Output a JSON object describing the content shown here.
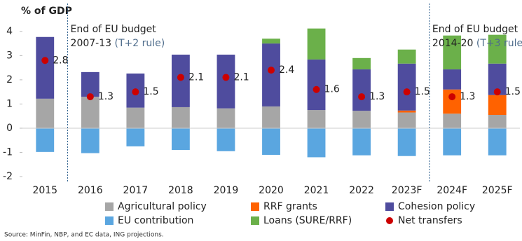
{
  "chart_data": {
    "type": "bar",
    "stacked": true,
    "y_label": "% of GDP",
    "categories": [
      "2015",
      "2016",
      "2017",
      "2018",
      "2019",
      "2020",
      "2021",
      "2022",
      "2023F",
      "2024F",
      "2025F"
    ],
    "series": [
      {
        "name": "Agricultural policy",
        "color": "#a6a6a6",
        "values": [
          1.22,
          1.3,
          0.85,
          0.87,
          0.82,
          0.9,
          0.75,
          0.72,
          0.65,
          0.6,
          0.55
        ]
      },
      {
        "name": "RRF grants",
        "color": "#ff6200",
        "values": [
          0,
          0,
          0,
          0,
          0,
          0,
          0,
          0,
          0.08,
          1.0,
          0.82
        ]
      },
      {
        "name": "Cohesion policy",
        "color": "#4f4c9e",
        "values": [
          2.55,
          1.02,
          1.41,
          2.17,
          2.22,
          2.6,
          2.09,
          1.71,
          1.94,
          0.83,
          1.3
        ]
      },
      {
        "name": "EU contribution",
        "color": "#5aa6e0",
        "values": [
          -0.98,
          -1.03,
          -0.75,
          -0.9,
          -0.95,
          -1.1,
          -1.2,
          -1.12,
          -1.15,
          -1.12,
          -1.12
        ]
      },
      {
        "name": "Loans (SURE/RRF)",
        "color": "#6bb04a",
        "values": [
          0,
          0,
          0,
          0,
          0,
          0.2,
          1.28,
          0.47,
          0.58,
          1.4,
          1.19
        ]
      }
    ],
    "net_transfers": {
      "name": "Net transfers",
      "color": "#cc0000",
      "values": [
        2.8,
        1.3,
        1.5,
        2.1,
        2.1,
        2.4,
        1.6,
        1.3,
        1.5,
        1.3,
        1.5
      ]
    },
    "ylim": [
      -2.2,
      4.4
    ],
    "yticks": [
      -2,
      -1,
      0,
      1,
      2,
      3,
      4
    ],
    "annotations": [
      {
        "line1": "End of EU budget",
        "line2": "2007-13",
        "note": "(T+2 rule)"
      },
      {
        "line1": "End of EU budget",
        "line2": "2014-20",
        "note": "(T+3 rule)"
      }
    ],
    "source": "Source: MinFin, NBP, and EC data, ING projections."
  }
}
